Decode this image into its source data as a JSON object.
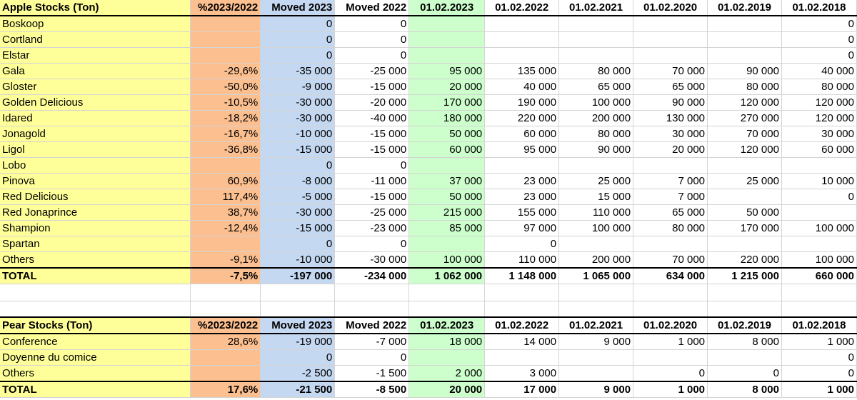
{
  "colors": {
    "label_col": "#ffff99",
    "pct_col": "#fcbf8f",
    "moved2023_col": "#c5d8f1",
    "date2023_col": "#ccffcc"
  },
  "apple": {
    "headers": [
      "Apple Stocks (Ton)",
      "%2023/2022",
      "Moved 2023",
      "Moved 2022",
      "01.02.2023",
      "01.02.2022",
      "01.02.2021",
      "01.02.2020",
      "01.02.2019",
      "01.02.2018"
    ],
    "rows": [
      [
        "Boskoop",
        "",
        "0",
        "0",
        "",
        "",
        "",
        "",
        "",
        "0"
      ],
      [
        "Cortland",
        "",
        "0",
        "0",
        "",
        "",
        "",
        "",
        "",
        "0"
      ],
      [
        "Elstar",
        "",
        "0",
        "0",
        "",
        "",
        "",
        "",
        "",
        "0"
      ],
      [
        "Gala",
        "-29,6%",
        "-35 000",
        "-25 000",
        "95 000",
        "135 000",
        "80 000",
        "70 000",
        "90 000",
        "40 000"
      ],
      [
        "Gloster",
        "-50,0%",
        "-9 000",
        "-15 000",
        "20 000",
        "40 000",
        "65 000",
        "65 000",
        "80 000",
        "80 000"
      ],
      [
        "Golden Delicious",
        "-10,5%",
        "-30 000",
        "-20 000",
        "170 000",
        "190 000",
        "100 000",
        "90 000",
        "120 000",
        "120 000"
      ],
      [
        "Idared",
        "-18,2%",
        "-30 000",
        "-40 000",
        "180 000",
        "220 000",
        "200 000",
        "130 000",
        "270 000",
        "120 000"
      ],
      [
        "Jonagold",
        "-16,7%",
        "-10 000",
        "-15 000",
        "50 000",
        "60 000",
        "80 000",
        "30 000",
        "70 000",
        "30 000"
      ],
      [
        "Ligol",
        "-36,8%",
        "-15 000",
        "-15 000",
        "60 000",
        "95 000",
        "90 000",
        "20 000",
        "120 000",
        "60 000"
      ],
      [
        "Lobo",
        "",
        "0",
        "0",
        "",
        "",
        "",
        "",
        "",
        ""
      ],
      [
        "Pinova",
        "60,9%",
        "-8 000",
        "-11 000",
        "37 000",
        "23 000",
        "25 000",
        "7 000",
        "25 000",
        "10 000"
      ],
      [
        "Red Delicious",
        "117,4%",
        "-5 000",
        "-15 000",
        "50 000",
        "23 000",
        "15 000",
        "7 000",
        "",
        "0"
      ],
      [
        "Red Jonaprince",
        "38,7%",
        "-30 000",
        "-25 000",
        "215 000",
        "155 000",
        "110 000",
        "65 000",
        "50 000",
        ""
      ],
      [
        "Shampion",
        "-12,4%",
        "-15 000",
        "-23 000",
        "85 000",
        "97 000",
        "100 000",
        "80 000",
        "170 000",
        "100 000"
      ],
      [
        "Spartan",
        "",
        "0",
        "0",
        "",
        "0",
        "",
        "",
        "",
        ""
      ],
      [
        "Others",
        "-9,1%",
        "-10 000",
        "-30 000",
        "100 000",
        "110 000",
        "200 000",
        "70 000",
        "220 000",
        "100 000"
      ]
    ],
    "total": [
      "TOTAL",
      "-7,5%",
      "-197 000",
      "-234 000",
      "1 062 000",
      "1 148 000",
      "1 065 000",
      "634 000",
      "1 215 000",
      "660 000"
    ]
  },
  "pear": {
    "headers": [
      "Pear Stocks (Ton)",
      "%2023/2022",
      "Moved 2023",
      "Moved 2022",
      "01.02.2023",
      "01.02.2022",
      "01.02.2021",
      "01.02.2020",
      "01.02.2019",
      "01.02.2018"
    ],
    "rows": [
      [
        "Conference",
        "28,6%",
        "-19 000",
        "-7 000",
        "18 000",
        "14 000",
        "9 000",
        "1 000",
        "8 000",
        "1 000"
      ],
      [
        "Doyenne du comice",
        "",
        "0",
        "0",
        "",
        "",
        "",
        "",
        "",
        "0"
      ],
      [
        "Others",
        "",
        "-2 500",
        "-1 500",
        "2 000",
        "3 000",
        "",
        "0",
        "0",
        "0"
      ]
    ],
    "total": [
      "TOTAL",
      "17,6%",
      "-21 500",
      "-8 500",
      "20 000",
      "17 000",
      "9 000",
      "1 000",
      "8 000",
      "1 000"
    ]
  }
}
